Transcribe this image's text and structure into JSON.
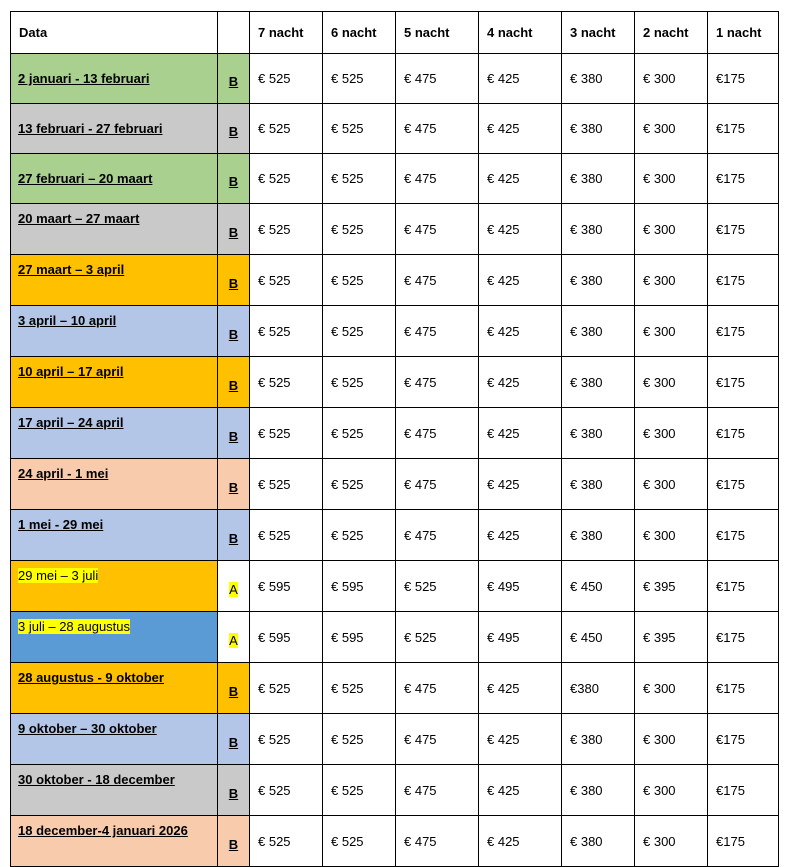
{
  "header": {
    "date": "Data",
    "nights": [
      "7 nacht",
      "6 nacht",
      "5 nacht",
      "4 nacht",
      "3 nacht",
      "2 nacht",
      "1 nacht"
    ]
  },
  "rows": [
    {
      "date": "2 januari - 13 februari",
      "code": "B",
      "color": "#a9d08e",
      "prices": [
        "€ 525",
        "€ 525",
        "€ 475",
        "€ 425",
        "€ 380",
        "€ 300",
        "€175"
      ]
    },
    {
      "date": "13 februari - 27 februari",
      "code": "B",
      "color": "#c9c9c9",
      "prices": [
        "€ 525",
        "€ 525",
        "€ 475",
        "€ 425",
        "€ 380",
        "€ 300",
        "€175"
      ]
    },
    {
      "date": "27 februari – 20 maart",
      "code": "B",
      "color": "#a9d08e",
      "prices": [
        "€ 525",
        "€ 525",
        "€ 475",
        "€ 425",
        "€ 380",
        "€ 300",
        "€175"
      ]
    },
    {
      "date": "20 maart – 27 maart",
      "code": "B",
      "color": "#c9c9c9",
      "prices": [
        "€ 525",
        "€ 525",
        "€ 475",
        "€ 425",
        "€ 380",
        "€ 300",
        "€175"
      ]
    },
    {
      "date": "27 maart – 3 april",
      "code": "B",
      "color": "#ffc000",
      "prices": [
        "€ 525",
        "€ 525",
        "€ 475",
        "€ 425",
        "€ 380",
        "€ 300",
        "€175"
      ]
    },
    {
      "date": "3 april – 10 april",
      "code": "B",
      "color": "#b4c6e7",
      "prices": [
        "€ 525",
        "€ 525",
        "€ 475",
        "€ 425",
        "€ 380",
        "€ 300",
        "€175"
      ]
    },
    {
      "date": "10 april – 17 april",
      "code": "B",
      "color": "#ffc000",
      "prices": [
        "€ 525",
        "€ 525",
        "€ 475",
        "€ 425",
        "€ 380",
        "€ 300",
        "€175"
      ]
    },
    {
      "date": "17 april – 24 april",
      "code": "B",
      "color": "#b4c6e7",
      "prices": [
        "€ 525",
        "€ 525",
        "€ 475",
        "€ 425",
        "€ 380",
        "€ 300",
        "€175"
      ]
    },
    {
      "date": "24 april - 1 mei",
      "code": "B",
      "color": "#f8cbad",
      "prices": [
        "€ 525",
        "€ 525",
        "€ 475",
        "€ 425",
        "€ 380",
        "€ 300",
        "€175"
      ]
    },
    {
      "date": "1 mei - 29 mei",
      "code": "B",
      "color": "#b4c6e7",
      "prices": [
        "€ 525",
        "€ 525",
        "€ 475",
        "€ 425",
        "€ 380",
        "€ 300",
        "€175"
      ]
    },
    {
      "date": "29 mei – 3 juli",
      "code": "A",
      "color": "#ffc000",
      "highlight": true,
      "prices": [
        "€ 595",
        "€ 595",
        "€ 525",
        "€ 495",
        "€ 450",
        "€ 395",
        "€175"
      ]
    },
    {
      "date": "3 juli – 28 augustus",
      "code": "A",
      "color": "#5b9bd5",
      "highlight": true,
      "prices": [
        "€ 595",
        "€ 595",
        "€ 525",
        "€ 495",
        "€ 450",
        "€ 395",
        "€175"
      ]
    },
    {
      "date": "28 augustus - 9 oktober",
      "code": "B",
      "color": "#ffc000",
      "prices": [
        "€ 525",
        "€ 525",
        "€ 475",
        "€ 425",
        "€380",
        "€ 300",
        "€175"
      ]
    },
    {
      "date": "9 oktober – 30 oktober",
      "code": "B",
      "color": "#b4c6e7",
      "prices": [
        "€ 525",
        "€ 525",
        "€ 475",
        "€ 425",
        "€ 380",
        "€ 300",
        "€175"
      ]
    },
    {
      "date": "30 oktober - 18 december",
      "code": "B",
      "color": "#c9c9c9",
      "prices": [
        "€ 525",
        "€ 525",
        "€ 475",
        "€ 425",
        "€ 380",
        "€ 300",
        "€175"
      ]
    },
    {
      "date": "18 december-4 januari 2026",
      "code": "B",
      "color": "#f8cbad",
      "prices": [
        "€ 525",
        "€ 525",
        "€ 475",
        "€ 425",
        "€ 380",
        "€ 300",
        "€175"
      ]
    }
  ]
}
